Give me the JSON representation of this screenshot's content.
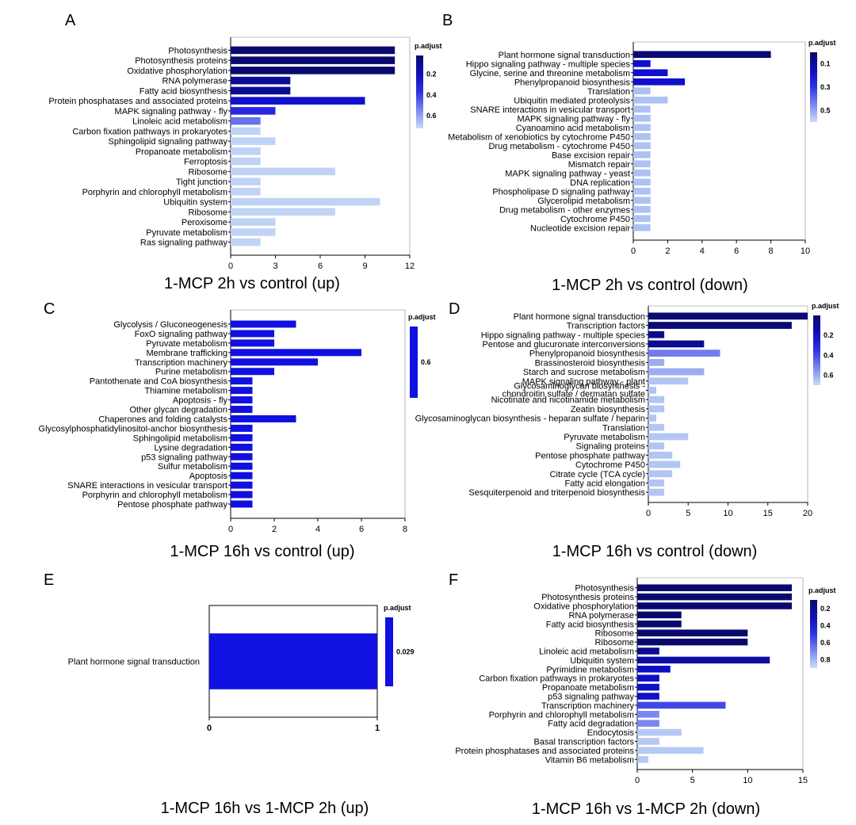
{
  "figure": {
    "legend_title": "p.adjust",
    "colors": {
      "dark": "#0a0a6e",
      "mid": "#1010e0",
      "light": "#c9ddf6"
    }
  },
  "chart_data": [
    {
      "panel": "A",
      "type": "bar",
      "orientation": "horizontal",
      "title": "1-MCP 2h vs control (up)",
      "categories": [
        "Photosynthesis",
        "Photosynthesis proteins",
        "Oxidative phosphorylation",
        "RNA polymerase",
        "Fatty acid biosynthesis",
        "Protein phosphatases and associated proteins",
        "MAPK signaling pathway - fly",
        "Linoleic acid metabolism",
        "Carbon fixation pathways in prokaryotes",
        "Sphingolipid signaling pathway",
        "Propanoate metabolism",
        "Ferroptosis",
        "Ribosome",
        "Tight junction",
        "Porphyrin and chlorophyll metabolism",
        "Ubiquitin system",
        "Ribosome",
        "Peroxisome",
        "Pyruvate metabolism",
        "Ras signaling pathway"
      ],
      "values": [
        11,
        11,
        11,
        4,
        4,
        9,
        3,
        2,
        2,
        3,
        2,
        2,
        7,
        2,
        2,
        10,
        7,
        3,
        3,
        2
      ],
      "p_adjust": [
        0.02,
        0.02,
        0.02,
        0.12,
        0.12,
        0.25,
        0.35,
        0.5,
        0.7,
        0.7,
        0.7,
        0.7,
        0.7,
        0.7,
        0.7,
        0.7,
        0.7,
        0.7,
        0.7,
        0.7
      ],
      "xlim": [
        0,
        12
      ],
      "xticks": [
        "0",
        "3",
        "6",
        "9",
        "12"
      ],
      "legend_range": [
        0.02,
        0.72
      ],
      "legend_ticks": [
        "0.2",
        "0.4",
        "0.6"
      ]
    },
    {
      "panel": "B",
      "type": "bar",
      "orientation": "horizontal",
      "title": "1-MCP 2h vs control (down)",
      "categories": [
        "Plant hormone signal transduction",
        "Hippo signaling pathway - multiple species",
        "Glycine, serine and threonine metabolism",
        "Phenylpropanoid biosynthesis",
        "Translation",
        "Ubiquitin mediated proteolysis",
        "SNARE interactions in vesicular transport",
        "MAPK signaling pathway - fly",
        "Cyanoamino acid metabolism",
        "Metabolism of xenobiotics by cytochrome P450",
        "Drug metabolism - cytochrome P450",
        "Base excision repair",
        "Mismatch repair",
        "MAPK signaling pathway - yeast",
        "DNA replication",
        "Phospholipase D signaling pathway",
        "Glycerolipid metabolism",
        "Drug metabolism - other enzymes",
        "Cytochrome P450",
        "Nucleotide excision repair"
      ],
      "values": [
        8,
        1,
        2,
        3,
        1,
        2,
        1,
        1,
        1,
        1,
        1,
        1,
        1,
        1,
        1,
        1,
        1,
        1,
        1,
        1
      ],
      "p_adjust": [
        0.01,
        0.2,
        0.2,
        0.2,
        0.55,
        0.55,
        0.55,
        0.55,
        0.55,
        0.55,
        0.55,
        0.55,
        0.55,
        0.55,
        0.55,
        0.55,
        0.55,
        0.55,
        0.55,
        0.55
      ],
      "xlim": [
        0,
        10
      ],
      "xticks": [
        "0",
        "2",
        "4",
        "6",
        "8",
        "10"
      ],
      "legend_range": [
        0.0,
        0.6
      ],
      "legend_ticks": [
        "0.1",
        "0.3",
        "0.5"
      ]
    },
    {
      "panel": "C",
      "type": "bar",
      "orientation": "horizontal",
      "title": "1-MCP 16h vs control (up)",
      "categories": [
        "Glycolysis / Gluconeogenesis",
        "FoxO signaling pathway",
        "Pyruvate metabolism",
        "Membrane trafficking",
        "Transcription machinery",
        "Purine metabolism",
        "Pantothenate and CoA biosynthesis",
        "Thiamine metabolism",
        "Apoptosis - fly",
        "Other glycan degradation",
        "Chaperones and folding catalysts",
        "Glycosylphosphatidylinositol-anchor biosynthesis",
        "Sphingolipid metabolism",
        "Lysine degradation",
        "p53 signaling pathway",
        "Sulfur metabolism",
        "Apoptosis",
        "SNARE interactions in vesicular transport",
        "Porphyrin and chlorophyll metabolism",
        "Pentose phosphate pathway"
      ],
      "values": [
        3,
        2,
        2,
        6,
        4,
        2,
        1,
        1,
        1,
        1,
        3,
        1,
        1,
        1,
        1,
        1,
        1,
        1,
        1,
        1
      ],
      "p_adjust": [
        0.6,
        0.6,
        0.6,
        0.6,
        0.6,
        0.6,
        0.6,
        0.6,
        0.6,
        0.6,
        0.6,
        0.6,
        0.6,
        0.6,
        0.6,
        0.6,
        0.6,
        0.6,
        0.6,
        0.6
      ],
      "xlim": [
        0,
        8
      ],
      "xticks": [
        "0",
        "2",
        "4",
        "6",
        "8"
      ],
      "legend_range": [
        0.6,
        0.6
      ],
      "legend_ticks": [
        "0.6"
      ]
    },
    {
      "panel": "D",
      "type": "bar",
      "orientation": "horizontal",
      "title": "1-MCP 16h vs control (down)",
      "categories": [
        "Plant hormone signal transduction",
        "Transcription factors",
        "Hippo signaling pathway - multiple species",
        "Pentose and glucuronate interconversions",
        "Phenylpropanoid biosynthesis",
        "Brassinosteroid biosynthesis",
        "Starch and sucrose metabolism",
        "MAPK signaling pathway - plant",
        "Glycosaminoglycan biosynthesis - chondroitin sulfate / dermatan sulfate",
        "Nicotinate and nicotinamide metabolism",
        "Zeatin biosynthesis",
        "Glycosaminoglycan biosynthesis - heparan sulfate / heparin",
        "Translation",
        "Pyruvate metabolism",
        "Signaling proteins",
        "Pentose phosphate pathway",
        "Cytochrome P450",
        "Citrate cycle (TCA cycle)",
        "Fatty acid elongation",
        "Sesquiterpenoid and triterpenoid biosynthesis"
      ],
      "values": [
        20,
        18,
        2,
        7,
        9,
        2,
        7,
        5,
        1,
        2,
        2,
        1,
        2,
        5,
        2,
        3,
        4,
        3,
        2,
        2
      ],
      "p_adjust": [
        0.01,
        0.02,
        0.08,
        0.08,
        0.5,
        0.6,
        0.6,
        0.65,
        0.65,
        0.65,
        0.65,
        0.65,
        0.65,
        0.65,
        0.65,
        0.65,
        0.65,
        0.65,
        0.65,
        0.65
      ],
      "xlim": [
        0,
        20
      ],
      "xticks": [
        "0",
        "5",
        "10",
        "15",
        "20"
      ],
      "legend_range": [
        0.0,
        0.7
      ],
      "legend_ticks": [
        "0.2",
        "0.4",
        "0.6"
      ]
    },
    {
      "panel": "E",
      "type": "bar",
      "orientation": "horizontal",
      "title": "1-MCP 16h vs 1-MCP 2h (up)",
      "categories": [
        "Plant hormone signal transduction"
      ],
      "values": [
        1
      ],
      "p_adjust": [
        0.029
      ],
      "xlim": [
        0,
        1
      ],
      "xticks": [
        "0",
        "1"
      ],
      "legend_range": [
        0.029,
        0.029
      ],
      "legend_ticks": [
        "0.029"
      ]
    },
    {
      "panel": "F",
      "type": "bar",
      "orientation": "horizontal",
      "title": "1-MCP 16h vs 1-MCP 2h (down)",
      "categories": [
        "Photosynthesis",
        "Photosynthesis proteins",
        "Oxidative phosphorylation",
        "RNA polymerase",
        "Fatty acid biosynthesis",
        "Ribosome",
        "Ribosome",
        "Linoleic acid metabolism",
        "Ubiquitin system",
        "Pyrimidine metabolism",
        "Carbon fixation pathways in prokaryotes",
        "Propanoate metabolism",
        "p53 signaling pathway",
        "Transcription machinery",
        "Porphyrin and chlorophyll metabolism",
        "Fatty acid degradation",
        "Endocytosis",
        "Basal transcription factors",
        "Protein phosphatases and associated proteins",
        "Vitamin B6 metabolism"
      ],
      "values": [
        14,
        14,
        14,
        4,
        4,
        10,
        10,
        2,
        12,
        3,
        2,
        2,
        2,
        8,
        2,
        2,
        4,
        2,
        6,
        1
      ],
      "p_adjust": [
        0.02,
        0.02,
        0.02,
        0.05,
        0.05,
        0.1,
        0.1,
        0.2,
        0.25,
        0.35,
        0.35,
        0.35,
        0.35,
        0.55,
        0.7,
        0.7,
        0.85,
        0.85,
        0.85,
        0.85
      ],
      "xlim": [
        0,
        15
      ],
      "xticks": [
        "0",
        "5",
        "10",
        "15"
      ],
      "legend_range": [
        0.1,
        0.9
      ],
      "legend_ticks": [
        "0.2",
        "0.4",
        "0.6",
        "0.8"
      ]
    }
  ]
}
